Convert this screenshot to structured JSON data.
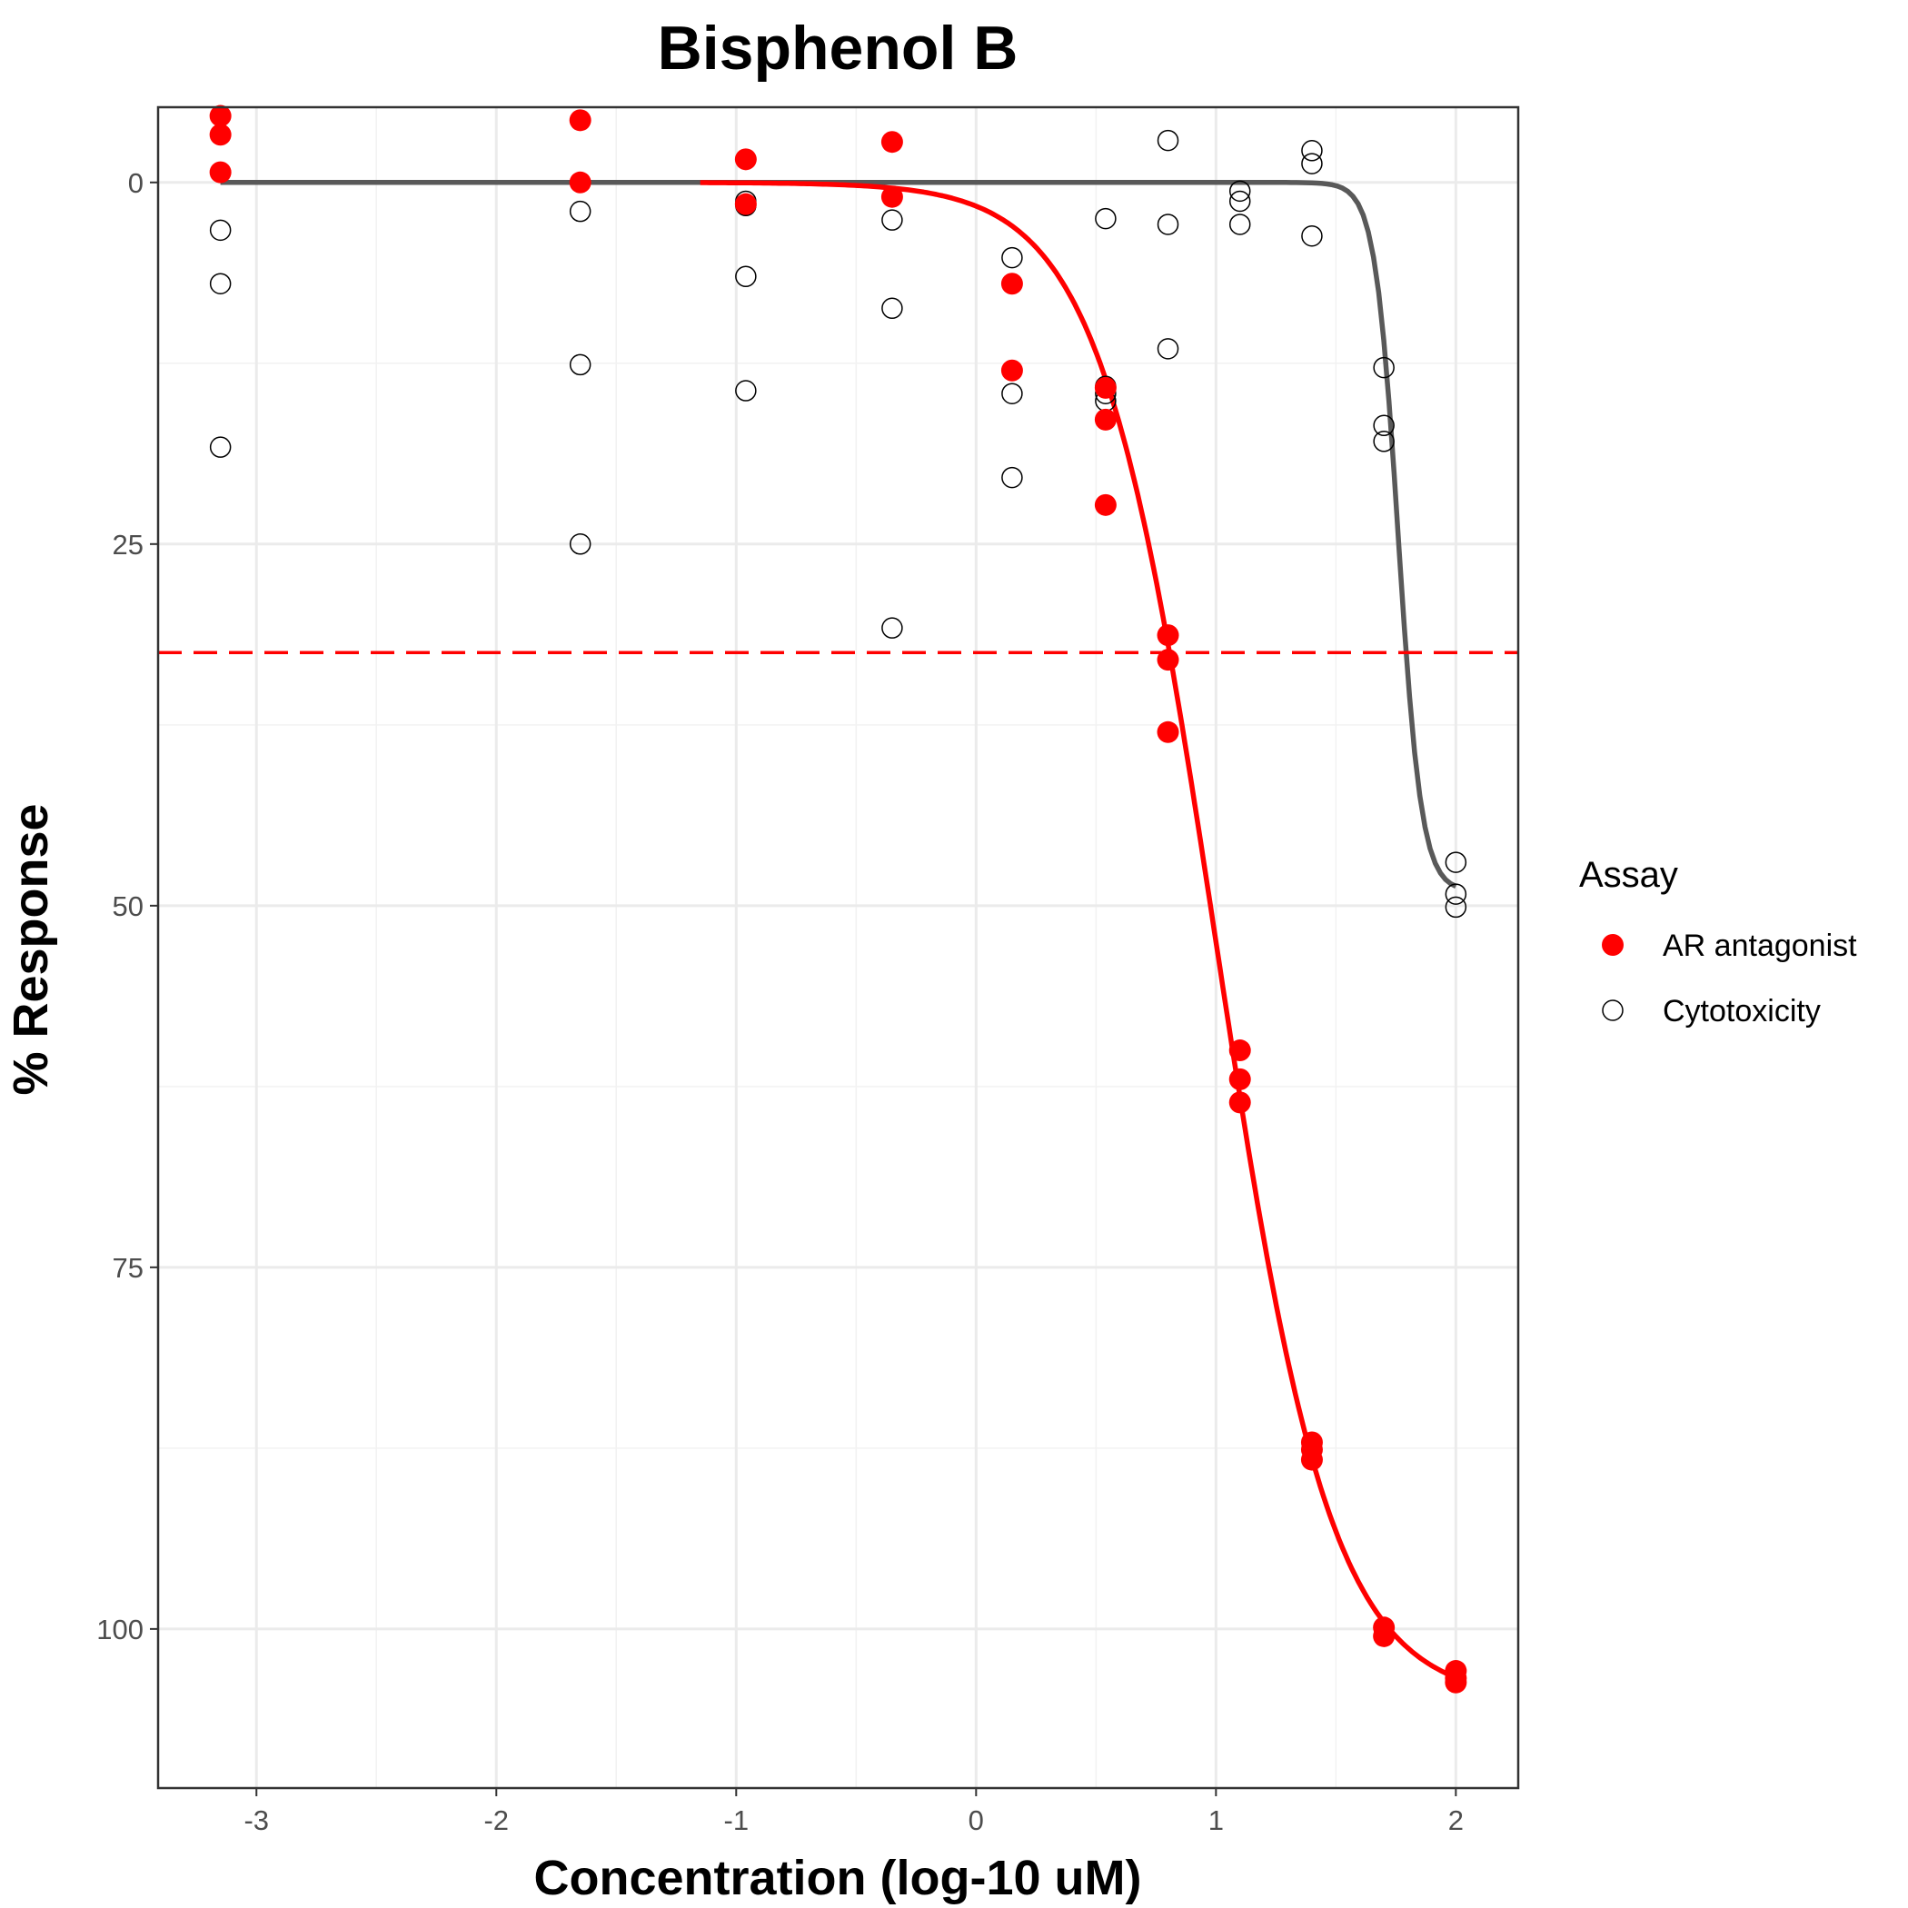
{
  "chart_data": {
    "type": "scatter",
    "title": "Bisphenol B",
    "xlabel": "Concentration (log-10 uM)",
    "ylabel": "% Response",
    "xlim": [
      -3.41,
      2.26
    ],
    "ylim": [
      -5.2,
      111
    ],
    "y_reversed": true,
    "x_ticks": [
      -3,
      -2,
      -1,
      0,
      1,
      2
    ],
    "x_tick_labels": [
      "-3",
      "-2",
      "-1",
      "0",
      "1",
      "2"
    ],
    "y_ticks": [
      0,
      25,
      50,
      75,
      100
    ],
    "y_tick_labels": [
      "0",
      "25",
      "50",
      "75",
      "100"
    ],
    "grid": true,
    "legend": {
      "title": "Assay",
      "position": "right",
      "entries": [
        {
          "label": "AR antagonist",
          "marker": "filled-circle",
          "color": "#ff0000"
        },
        {
          "label": "Cytotoxicity",
          "marker": "open-circle",
          "color": "#000000"
        }
      ]
    },
    "threshold": {
      "y": 32.5,
      "style": "dashed",
      "color": "#ff0000"
    },
    "series": [
      {
        "name": "AR antagonist",
        "marker": "filled",
        "color": "#ff0000",
        "points": [
          [
            -3.15,
            -4.6
          ],
          [
            -3.15,
            -3.3
          ],
          [
            -3.15,
            -0.7
          ],
          [
            -1.65,
            -4.3
          ],
          [
            -1.65,
            0.0
          ],
          [
            -0.96,
            -1.6
          ],
          [
            -0.96,
            1.5
          ],
          [
            -0.35,
            -2.8
          ],
          [
            -0.35,
            1.0
          ],
          [
            0.15,
            7.0
          ],
          [
            0.15,
            13.0
          ],
          [
            0.54,
            14.2
          ],
          [
            0.54,
            16.4
          ],
          [
            0.54,
            22.3
          ],
          [
            0.8,
            31.3
          ],
          [
            0.8,
            33.0
          ],
          [
            0.8,
            38.0
          ],
          [
            1.1,
            60.0
          ],
          [
            1.1,
            62.0
          ],
          [
            1.1,
            63.6
          ],
          [
            1.4,
            87.1
          ],
          [
            1.4,
            87.6
          ],
          [
            1.4,
            88.3
          ],
          [
            1.7,
            99.9
          ],
          [
            1.7,
            100.5
          ],
          [
            2.0,
            102.9
          ],
          [
            2.0,
            103.4
          ],
          [
            2.0,
            103.7
          ]
        ],
        "curve": {
          "model": "hill",
          "top": 105,
          "ac50_log": 1.0,
          "hill": 1.8
        }
      },
      {
        "name": "Cytotoxicity",
        "marker": "open",
        "color": "#000000",
        "points": [
          [
            -3.15,
            3.3
          ],
          [
            -3.15,
            7.0
          ],
          [
            -3.15,
            18.3
          ],
          [
            -1.65,
            2.0
          ],
          [
            -1.65,
            12.6
          ],
          [
            -1.65,
            25.0
          ],
          [
            -0.96,
            1.3
          ],
          [
            -0.96,
            1.6
          ],
          [
            -0.96,
            6.5
          ],
          [
            -0.96,
            14.4
          ],
          [
            -0.35,
            2.6
          ],
          [
            -0.35,
            8.7
          ],
          [
            -0.35,
            30.8
          ],
          [
            0.15,
            5.2
          ],
          [
            0.15,
            14.6
          ],
          [
            0.15,
            20.4
          ],
          [
            0.54,
            2.5
          ],
          [
            0.54,
            14.1
          ],
          [
            0.54,
            14.6
          ],
          [
            0.54,
            15.1
          ],
          [
            0.8,
            -2.9
          ],
          [
            0.8,
            2.9
          ],
          [
            0.8,
            11.5
          ],
          [
            1.1,
            0.6
          ],
          [
            1.1,
            1.3
          ],
          [
            1.1,
            2.9
          ],
          [
            1.4,
            -2.2
          ],
          [
            1.4,
            -1.3
          ],
          [
            1.4,
            3.7
          ],
          [
            1.7,
            12.8
          ],
          [
            1.7,
            16.8
          ],
          [
            1.7,
            17.9
          ],
          [
            2.0,
            47.0
          ],
          [
            2.0,
            49.2
          ],
          [
            2.0,
            50.1
          ]
        ],
        "curve": {
          "model": "hill",
          "top": 49,
          "ac50_log": 1.76,
          "hill": 9
        }
      }
    ]
  }
}
